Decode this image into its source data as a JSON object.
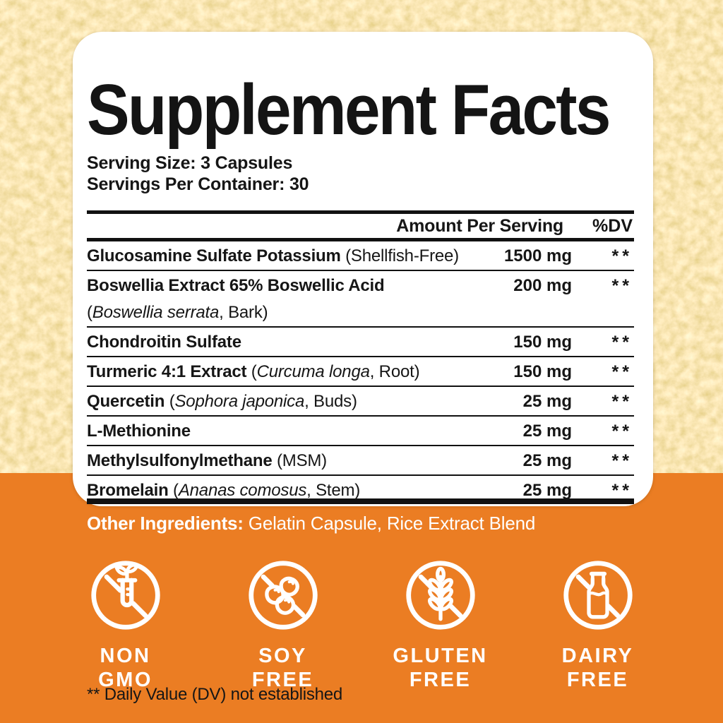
{
  "colors": {
    "background_orange": "#EB7D23",
    "panel_white": "#FFFFFF",
    "text_black": "#161616",
    "powder_gold": "#EFD494"
  },
  "panel": {
    "title": "Supplement Facts",
    "serving_size": "Serving Size: 3 Capsules",
    "servings_per_container": "Servings Per Container: 30",
    "header": {
      "amount": "Amount Per Serving",
      "dv": "%DV"
    },
    "rows": [
      {
        "segments": [
          [
            "b",
            "Glucosamine Sulfate Potassium"
          ],
          [
            "r",
            " (Shellfish-Free)"
          ]
        ],
        "amount": "1500 mg",
        "dv": "**"
      },
      {
        "segments": [
          [
            "b",
            "Boswellia Extract 65% Boswellic Acid"
          ]
        ],
        "line2": [
          [
            "r",
            "("
          ],
          [
            "i",
            "Boswellia serrata"
          ],
          [
            "r",
            ", Bark)"
          ]
        ],
        "amount": "200 mg",
        "dv": "**"
      },
      {
        "segments": [
          [
            "b",
            "Chondroitin Sulfate"
          ]
        ],
        "amount": "150 mg",
        "dv": "**"
      },
      {
        "segments": [
          [
            "b",
            "Turmeric 4:1 Extract"
          ],
          [
            "r",
            " ("
          ],
          [
            "i",
            "Curcuma longa"
          ],
          [
            "r",
            ", Root)"
          ]
        ],
        "amount": "150 mg",
        "dv": "**"
      },
      {
        "segments": [
          [
            "b",
            "Quercetin"
          ],
          [
            "r",
            " ("
          ],
          [
            "i",
            "Sophora japonica"
          ],
          [
            "r",
            ", Buds)"
          ]
        ],
        "amount": "25 mg",
        "dv": "**"
      },
      {
        "segments": [
          [
            "b",
            "L-Methionine"
          ]
        ],
        "amount": "25 mg",
        "dv": "**"
      },
      {
        "segments": [
          [
            "b",
            "Methylsulfonylmethane"
          ],
          [
            "r",
            " (MSM)"
          ]
        ],
        "amount": "25 mg",
        "dv": "**"
      },
      {
        "segments": [
          [
            "b",
            "Bromelain"
          ],
          [
            "r",
            " ("
          ],
          [
            "i",
            "Ananas comosus"
          ],
          [
            "r",
            ", Stem)"
          ]
        ],
        "amount": "25 mg",
        "dv": "**"
      }
    ],
    "footnote": "** Daily Value (DV) not established"
  },
  "other_ingredients": {
    "label": "Other Ingredients:",
    "value": " Gelatin Capsule, Rice Extract Blend"
  },
  "badges": [
    {
      "icon": "non-gmo-icon",
      "line1": "NON",
      "line2": "GMO"
    },
    {
      "icon": "soy-free-icon",
      "line1": "SOY",
      "line2": "FREE"
    },
    {
      "icon": "gluten-free-icon",
      "line1": "GLUTEN",
      "line2": "FREE"
    },
    {
      "icon": "dairy-free-icon",
      "line1": "DAIRY",
      "line2": "FREE"
    }
  ]
}
